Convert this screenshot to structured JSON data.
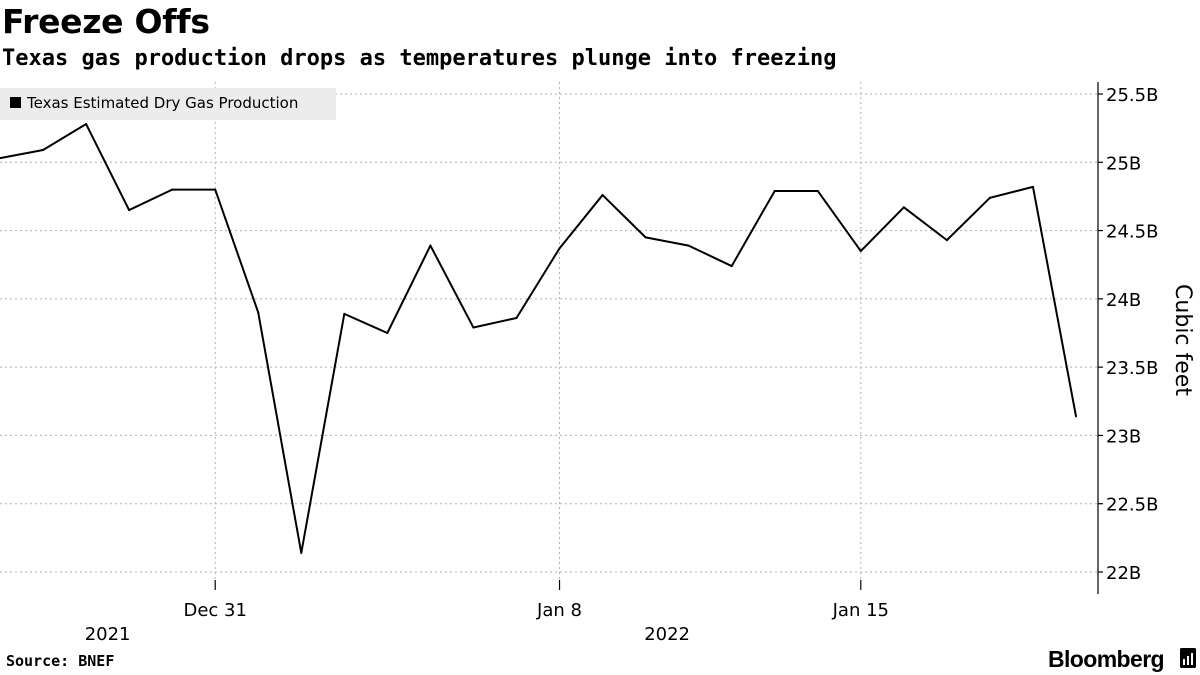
{
  "title": "Freeze Offs",
  "subtitle": "Texas gas production drops as temperatures plunge into freezing",
  "source": "Source: BNEF",
  "brand": "Bloomberg",
  "colors": {
    "line": "#000000",
    "grid": "#b0b0b0",
    "legend_bg": "#ececec",
    "background": "#ffffff"
  },
  "chart_data": {
    "type": "line",
    "title": "Freeze Offs",
    "subtitle": "Texas gas production drops as temperatures plunge into freezing",
    "ylabel": "Cubic feet",
    "xlabel": "",
    "ylim": [
      22.0,
      25.5
    ],
    "yticks": [
      22.0,
      22.5,
      23.0,
      23.5,
      24.0,
      24.5,
      25.0,
      25.5
    ],
    "ytick_labels": [
      "22B",
      "22.5B",
      "23B",
      "23.5B",
      "24B",
      "24.5B",
      "25B",
      "25.5B"
    ],
    "y_axis_side": "right",
    "xticks": [
      {
        "x": 5,
        "label": "Dec 31"
      },
      {
        "x": 13,
        "label": "Jan 8"
      },
      {
        "x": 20,
        "label": "Jan 15"
      }
    ],
    "year_labels": [
      {
        "x": 2.5,
        "label": "2021"
      },
      {
        "x": 15.5,
        "label": "2022"
      }
    ],
    "legend": {
      "position": "top-left",
      "entries": [
        "Texas Estimated Dry Gas Production"
      ]
    },
    "grid": "horizontal and vertical dotted",
    "series": [
      {
        "name": "Texas Estimated Dry Gas Production",
        "x": [
          0,
          1,
          2,
          3,
          4,
          5,
          6,
          7,
          8,
          9,
          10,
          11,
          12,
          13,
          14,
          15,
          16,
          17,
          18,
          19,
          20,
          21,
          22,
          23,
          24,
          25
        ],
        "values": [
          25.03,
          25.09,
          25.28,
          24.65,
          24.8,
          24.8,
          23.9,
          22.14,
          23.89,
          23.75,
          24.39,
          23.79,
          23.86,
          24.37,
          24.76,
          24.45,
          24.39,
          24.24,
          24.79,
          24.79,
          24.35,
          24.67,
          24.43,
          24.74,
          24.82,
          23.14
        ]
      }
    ]
  }
}
